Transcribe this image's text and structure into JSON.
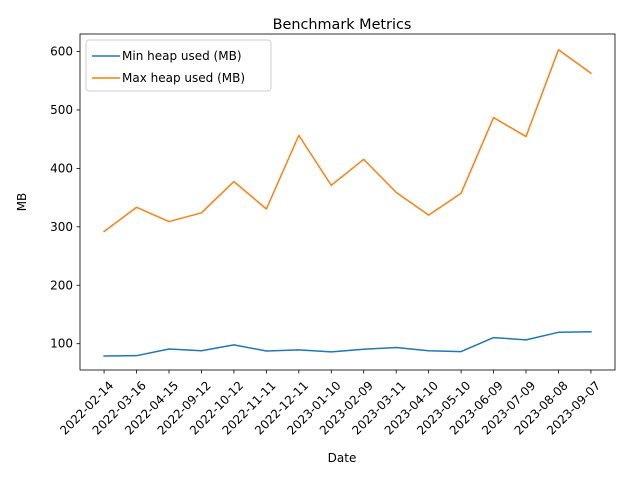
{
  "chart_data": {
    "type": "line",
    "title": "Benchmark Metrics",
    "xlabel": "Date",
    "ylabel": "MB",
    "categories": [
      "2022-02-14",
      "2022-03-16",
      "2022-04-15",
      "2022-09-12",
      "2022-10-12",
      "2022-11-11",
      "2022-12-11",
      "2023-01-10",
      "2023-02-09",
      "2023-03-11",
      "2023-04-10",
      "2023-05-10",
      "2023-06-09",
      "2023-07-09",
      "2023-08-08",
      "2023-09-07"
    ],
    "yticks": [
      100,
      200,
      300,
      400,
      500,
      600
    ],
    "ylim": [
      55,
      630
    ],
    "grid": false,
    "legend_position": "upper left",
    "series": [
      {
        "name": "Min heap used (MB)",
        "color": "#1f77b4",
        "values": [
          79,
          79.5,
          91,
          88,
          98,
          87.5,
          89.5,
          86,
          90.5,
          93.5,
          88,
          86.5,
          110.5,
          106.5,
          119.5,
          120.5
        ]
      },
      {
        "name": "Max heap used (MB)",
        "color": "#ff7f0e",
        "values": [
          292,
          333.5,
          309,
          324,
          377.5,
          330.5,
          456.5,
          371,
          415.5,
          359,
          320,
          357.5,
          487,
          454.5,
          603,
          563
        ]
      }
    ]
  }
}
